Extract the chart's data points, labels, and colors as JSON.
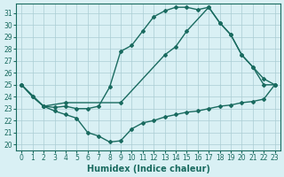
{
  "xlabel": "Humidex (Indice chaleur)",
  "bg_color": "#d9f0f4",
  "grid_color": "#aacdd4",
  "line_color": "#1a6b60",
  "xlim": [
    -0.5,
    23.5
  ],
  "ylim": [
    19.5,
    31.8
  ],
  "yticks": [
    20,
    21,
    22,
    23,
    24,
    25,
    26,
    27,
    28,
    29,
    30,
    31
  ],
  "xticks": [
    0,
    1,
    2,
    3,
    4,
    5,
    6,
    7,
    8,
    9,
    10,
    11,
    12,
    13,
    14,
    15,
    16,
    17,
    18,
    19,
    20,
    21,
    22,
    23
  ],
  "line1_x": [
    0,
    1,
    2,
    3,
    4,
    5,
    6,
    7,
    8,
    9,
    10,
    11,
    12,
    13,
    14,
    15,
    16,
    17,
    18,
    19,
    20,
    21,
    22,
    23
  ],
  "line1_y": [
    25.0,
    24.0,
    23.2,
    23.1,
    23.2,
    23.0,
    23.0,
    23.2,
    24.8,
    27.8,
    28.3,
    29.5,
    30.7,
    31.2,
    31.5,
    31.5,
    31.3,
    31.5,
    30.2,
    29.2,
    27.5,
    26.5,
    25.0,
    25.0
  ],
  "line2_x": [
    0,
    1,
    2,
    3,
    4,
    5,
    6,
    7,
    8,
    9,
    10,
    11,
    12,
    13,
    14,
    15,
    16,
    17,
    18,
    19,
    20,
    21,
    22,
    23
  ],
  "line2_y": [
    25.0,
    24.0,
    23.2,
    22.8,
    22.5,
    22.2,
    21.0,
    20.7,
    20.2,
    20.3,
    21.3,
    21.8,
    22.0,
    22.3,
    22.5,
    22.7,
    22.8,
    23.0,
    23.2,
    23.3,
    23.5,
    23.6,
    23.8,
    25.0
  ],
  "line3_x": [
    0,
    2,
    4,
    9,
    13,
    14,
    15,
    17,
    18,
    19,
    20,
    21,
    22,
    23
  ],
  "line3_y": [
    25.0,
    23.2,
    23.5,
    23.5,
    27.5,
    28.2,
    29.5,
    31.5,
    30.2,
    29.2,
    27.5,
    26.5,
    25.5,
    25.0
  ],
  "marker": "D",
  "marker_size": 2.0,
  "line_width": 1.0,
  "tick_fontsize": 5.5,
  "label_fontsize": 7
}
